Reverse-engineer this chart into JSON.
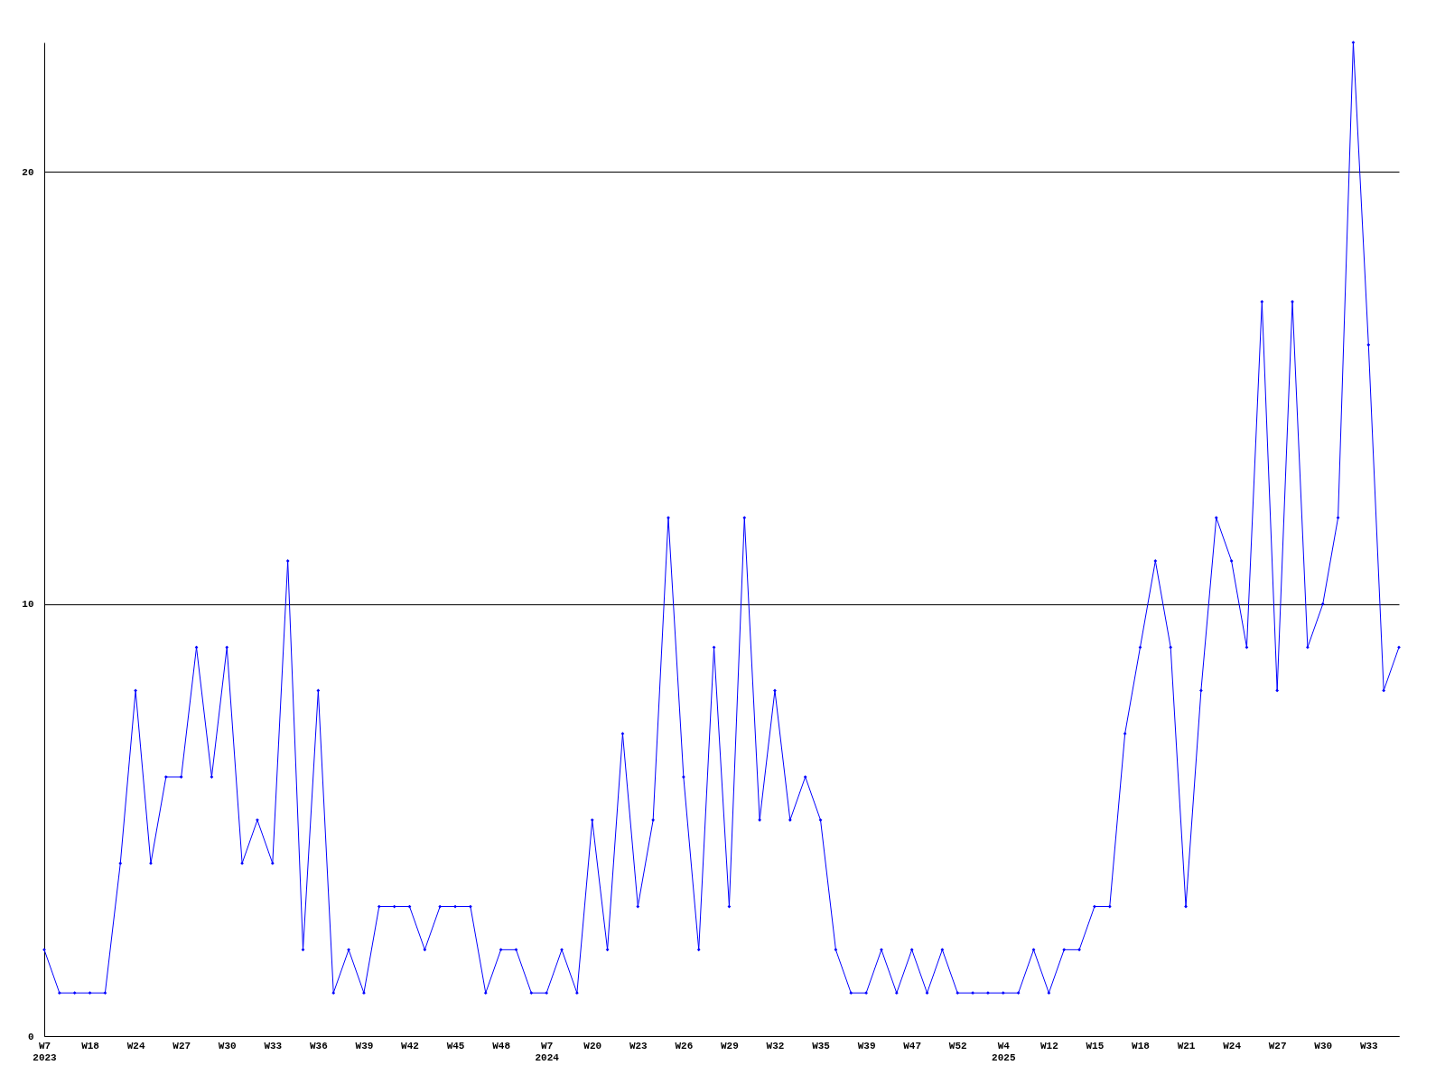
{
  "chart_data": {
    "type": "line",
    "categories": [
      "W7\n2023",
      null,
      null,
      "W18",
      null,
      null,
      "W24",
      null,
      null,
      "W27",
      null,
      null,
      "W30",
      null,
      null,
      "W33",
      null,
      null,
      "W36",
      null,
      null,
      "W39",
      null,
      null,
      "W42",
      null,
      null,
      "W45",
      null,
      null,
      "W48",
      null,
      null,
      "W7\n2024",
      null,
      null,
      "W20",
      null,
      null,
      "W23",
      null,
      null,
      "W26",
      null,
      null,
      "W29",
      null,
      null,
      "W32",
      null,
      null,
      "W35",
      null,
      null,
      "W39",
      null,
      null,
      "W47",
      null,
      null,
      "W52",
      null,
      null,
      "W4\n2025",
      null,
      null,
      "W12",
      null,
      null,
      "W15",
      null,
      null,
      "W18",
      null,
      null,
      "W21",
      null,
      null,
      "W24",
      null,
      null,
      "W27",
      null,
      null,
      "W30",
      null,
      null,
      "W33",
      null,
      null
    ],
    "series": [
      {
        "color": "#0000ff",
        "values": [
          2,
          1,
          1,
          1,
          1,
          4,
          8,
          4,
          6,
          6,
          9,
          6,
          9,
          4,
          5,
          4,
          11,
          2,
          8,
          1,
          2,
          1,
          3,
          3,
          3,
          2,
          3,
          3,
          3,
          1,
          2,
          2,
          1,
          1,
          2,
          1,
          5,
          2,
          7,
          3,
          5,
          12,
          6,
          2,
          9,
          3,
          12,
          5,
          8,
          5,
          6,
          5,
          2,
          1,
          1,
          2,
          1,
          2,
          1,
          2,
          1,
          1,
          1,
          1,
          1,
          2,
          1,
          2,
          2,
          3,
          3,
          7,
          9,
          11,
          9,
          3,
          8,
          12,
          11,
          9,
          17,
          8,
          17,
          9,
          10,
          12,
          23,
          16,
          8,
          9
        ]
      }
    ],
    "ylim": [
      0,
      23
    ],
    "yticks": [
      0,
      10,
      20
    ],
    "grid": "y",
    "marker": "diamond",
    "line_style": "solid"
  }
}
